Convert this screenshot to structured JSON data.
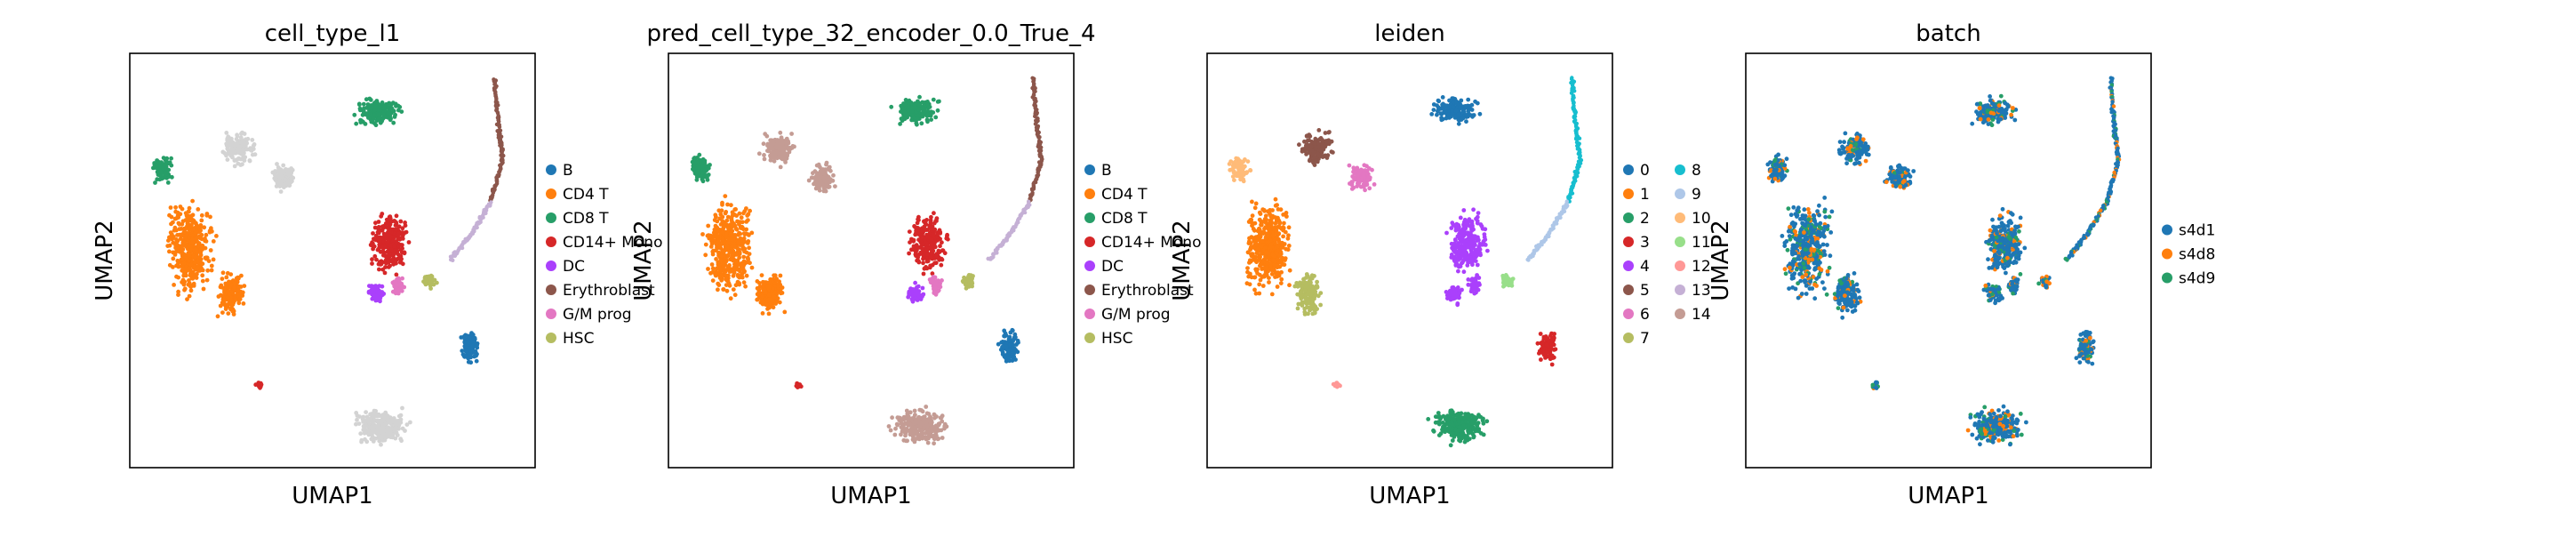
{
  "chart_data": [
    {
      "type": "scatter",
      "title": "cell_type_l1",
      "xlabel": "UMAP1",
      "ylabel": "UMAP2",
      "legend_location": "right",
      "legend": [
        {
          "label": "B",
          "color": "#1f77b4"
        },
        {
          "label": "CD4 T",
          "color": "#ff7f0e"
        },
        {
          "label": "CD8 T",
          "color": "#279e68"
        },
        {
          "label": "CD14+ Mono",
          "color": "#d62728"
        },
        {
          "label": "DC",
          "color": "#aa40fc"
        },
        {
          "label": "Erythroblast",
          "color": "#8c564b"
        },
        {
          "label": "G/M prog",
          "color": "#e377c2"
        },
        {
          "label": "HSC",
          "color": "#b5bd61"
        }
      ],
      "unlabeled_color": "#d3d3d3"
    },
    {
      "type": "scatter",
      "title": "pred_cell_type_32_encoder_0.0_True_4",
      "xlabel": "UMAP1",
      "ylabel": "UMAP2",
      "legend_location": "right",
      "legend": [
        {
          "label": "B",
          "color": "#1f77b4"
        },
        {
          "label": "CD4 T",
          "color": "#ff7f0e"
        },
        {
          "label": "CD8 T",
          "color": "#279e68"
        },
        {
          "label": "CD14+ Mono",
          "color": "#d62728"
        },
        {
          "label": "DC",
          "color": "#aa40fc"
        },
        {
          "label": "Erythroblast",
          "color": "#8c564b"
        },
        {
          "label": "G/M prog",
          "color": "#e377c2"
        },
        {
          "label": "HSC",
          "color": "#b5bd61"
        }
      ],
      "unlabeled_color": "#c49c94"
    },
    {
      "type": "scatter",
      "title": "leiden",
      "xlabel": "UMAP1",
      "ylabel": "UMAP2",
      "legend_location": "right",
      "legend": [
        {
          "label": "0",
          "color": "#1f77b4"
        },
        {
          "label": "1",
          "color": "#ff7f0e"
        },
        {
          "label": "2",
          "color": "#279e68"
        },
        {
          "label": "3",
          "color": "#d62728"
        },
        {
          "label": "4",
          "color": "#aa40fc"
        },
        {
          "label": "5",
          "color": "#8c564b"
        },
        {
          "label": "6",
          "color": "#e377c2"
        },
        {
          "label": "7",
          "color": "#b5bd61"
        },
        {
          "label": "8",
          "color": "#17becf"
        },
        {
          "label": "9",
          "color": "#aec7e8"
        },
        {
          "label": "10",
          "color": "#ffbb78"
        },
        {
          "label": "11",
          "color": "#98df8a"
        },
        {
          "label": "12",
          "color": "#ff9896"
        },
        {
          "label": "13",
          "color": "#c5b0d5"
        },
        {
          "label": "14",
          "color": "#c49c94"
        }
      ]
    },
    {
      "type": "scatter",
      "title": "batch",
      "xlabel": "UMAP1",
      "ylabel": "UMAP2",
      "legend_location": "right",
      "legend": [
        {
          "label": "s4d1",
          "color": "#1f77b4"
        },
        {
          "label": "s4d8",
          "color": "#ff7f0e"
        },
        {
          "label": "s4d9",
          "color": "#279e68"
        }
      ]
    }
  ]
}
